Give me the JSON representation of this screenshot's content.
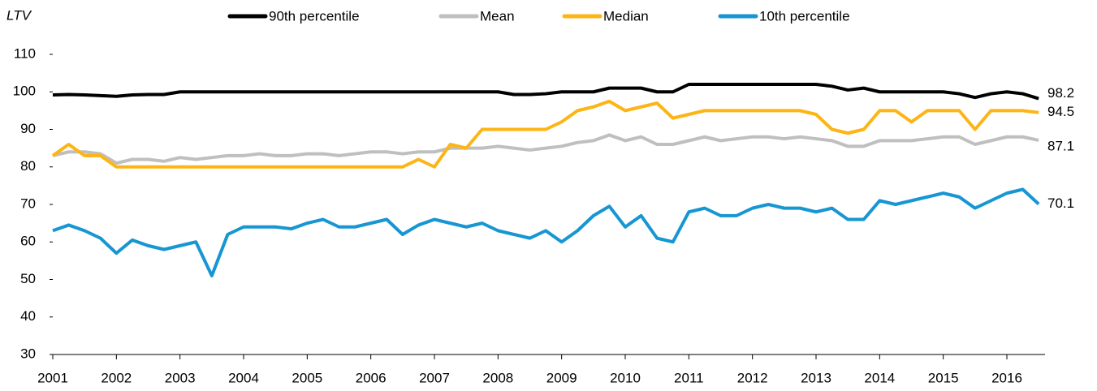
{
  "chart_data": {
    "type": "line",
    "ylabel": "LTV",
    "x": [
      2001,
      2001.25,
      2001.5,
      2001.75,
      2002,
      2002.25,
      2002.5,
      2002.75,
      2003,
      2003.25,
      2003.5,
      2003.75,
      2004,
      2004.25,
      2004.5,
      2004.75,
      2005,
      2005.25,
      2005.5,
      2005.75,
      2006,
      2006.25,
      2006.5,
      2006.75,
      2007,
      2007.25,
      2007.5,
      2007.75,
      2008,
      2008.25,
      2008.5,
      2008.75,
      2009,
      2009.25,
      2009.5,
      2009.75,
      2010,
      2010.25,
      2010.5,
      2010.75,
      2011,
      2011.25,
      2011.5,
      2011.75,
      2012,
      2012.25,
      2012.5,
      2012.75,
      2013,
      2013.25,
      2013.5,
      2013.75,
      2014,
      2014.25,
      2014.5,
      2014.75,
      2015,
      2015.25,
      2015.5,
      2015.75,
      2016,
      2016.25,
      2016.5
    ],
    "series": [
      {
        "name": "90th percentile",
        "color": "#000000",
        "values": [
          99.2,
          99.3,
          99.2,
          99.0,
          98.8,
          99.2,
          99.3,
          99.3,
          100,
          100,
          100,
          100,
          100,
          100,
          100,
          100,
          100,
          100,
          100,
          100,
          100,
          100,
          100,
          100,
          100,
          100,
          100,
          100,
          100,
          99.3,
          99.3,
          99.5,
          100,
          100,
          100,
          101,
          101,
          101,
          100,
          100,
          102,
          102,
          102,
          102,
          102,
          102,
          102,
          102,
          102,
          101.5,
          100.5,
          101,
          100,
          100,
          100,
          100,
          100,
          99.5,
          98.5,
          99.5,
          100,
          99.5,
          98.2
        ]
      },
      {
        "name": "Mean",
        "color": "#bfbfbf",
        "values": [
          83,
          84,
          84,
          83.5,
          81,
          82,
          82,
          81.5,
          82.5,
          82,
          82.5,
          83,
          83,
          83.5,
          83,
          83,
          83.5,
          83.5,
          83,
          83.5,
          84,
          84,
          83.5,
          84,
          84,
          85,
          85,
          85,
          85.5,
          85,
          84.5,
          85,
          85.5,
          86.5,
          87,
          88.5,
          87,
          88,
          86,
          86,
          87,
          88,
          87,
          87.5,
          88,
          88,
          87.5,
          88,
          87.5,
          87,
          85.5,
          85.5,
          87,
          87,
          87,
          87.5,
          88,
          88,
          86,
          87,
          88,
          88,
          87.1
        ]
      },
      {
        "name": "Median",
        "color": "#fdb515",
        "values": [
          83,
          86,
          83,
          83,
          80,
          80,
          80,
          80,
          80,
          80,
          80,
          80,
          80,
          80,
          80,
          80,
          80,
          80,
          80,
          80,
          80,
          80,
          80,
          82,
          80,
          86,
          85,
          90,
          90,
          90,
          90,
          90,
          92,
          95,
          96,
          97.5,
          95,
          96,
          97,
          93,
          94,
          95,
          95,
          95,
          95,
          95,
          95,
          95,
          94,
          90,
          89,
          90,
          95,
          95,
          92,
          95,
          95,
          95,
          90,
          95,
          95,
          95,
          94.5
        ]
      },
      {
        "name": "10th percentile",
        "color": "#1696d2",
        "values": [
          63,
          64.5,
          63,
          61,
          57,
          60.5,
          59,
          58,
          59,
          60,
          51,
          62,
          64,
          64,
          64,
          63.5,
          65,
          66,
          64,
          64,
          65,
          66,
          62,
          64.5,
          66,
          65,
          64,
          65,
          63,
          62,
          61,
          63,
          60,
          63,
          67,
          69.5,
          64,
          67,
          61,
          60,
          68,
          69,
          67,
          67,
          69,
          70,
          69,
          69,
          68,
          69,
          66,
          66,
          71,
          70,
          71,
          72,
          73,
          72,
          69,
          71,
          73,
          74,
          70.1
        ]
      }
    ],
    "xlim": [
      2001,
      2016.6
    ],
    "xticks": [
      2001,
      2002,
      2003,
      2004,
      2005,
      2006,
      2007,
      2008,
      2009,
      2010,
      2011,
      2012,
      2013,
      2014,
      2015,
      2016
    ],
    "ylim": [
      30,
      110
    ],
    "yticks": [
      30,
      40,
      50,
      60,
      70,
      80,
      90,
      100,
      110
    ]
  }
}
